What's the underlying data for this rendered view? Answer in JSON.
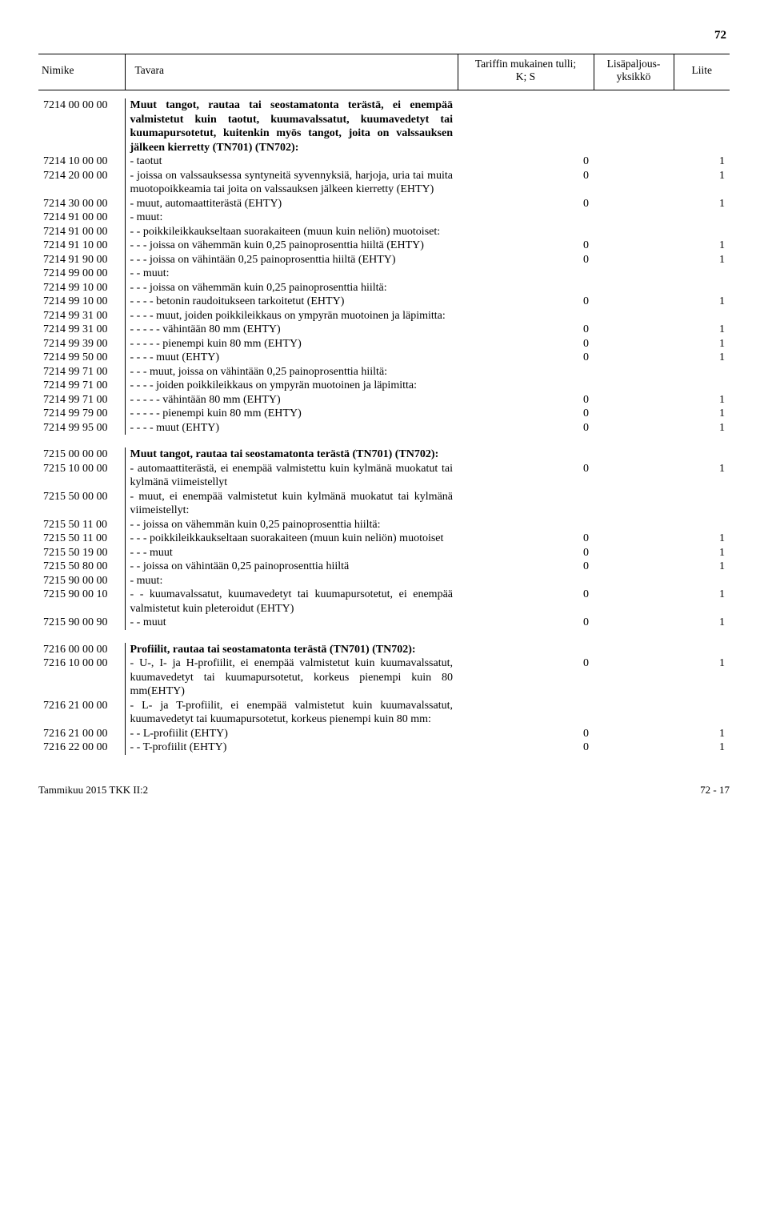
{
  "page_number_top": "72",
  "columns": {
    "code": "Nimike",
    "desc": "Tavara",
    "tariff_line1": "Tariffin mukainen tulli;",
    "tariff_line2": "K; S",
    "unit_line1": "Lisäpaljous-",
    "unit_line2": "yksikkö",
    "annex": "Liite"
  },
  "rows": [
    {
      "type": "row",
      "code": "7214 00 00 00",
      "bold": true,
      "desc": "Muut tangot, rautaa tai seostamatonta terästä, ei enempää valmistetut kuin taotut, kuumavalssatut, kuumavedetyt tai kuumapursotetut, kuitenkin myös tangot, joita on valssauksen jälkeen kierretty (TN701) (TN702):"
    },
    {
      "type": "row",
      "code": "7214 10 00 00",
      "desc": "- taotut",
      "tariff": "0",
      "annex": "1"
    },
    {
      "type": "row",
      "code": "7214 20 00 00",
      "desc": "- joissa on valssauksessa syntyneitä syvennyksiä, harjoja, uria tai muita muotopoikkeamia tai joita on valssauksen jälkeen kierretty (EHTY)",
      "tariff": "0",
      "annex": "1"
    },
    {
      "type": "row",
      "code": "7214 30 00 00",
      "desc": "- muut, automaattiterästä (EHTY)",
      "tariff": "0",
      "annex": "1"
    },
    {
      "type": "row",
      "code": "7214 91 00 00",
      "desc": "- muut:"
    },
    {
      "type": "row",
      "code": "7214 91 00 00",
      "desc": "- - poikkileikkaukseltaan suorakaiteen (muun kuin neliön) muotoiset:"
    },
    {
      "type": "row",
      "code": "7214 91 10 00",
      "desc": "- - - joissa on vähemmän kuin 0,25 painoprosenttia hiiltä (EHTY)",
      "tariff": "0",
      "annex": "1"
    },
    {
      "type": "row",
      "code": "7214 91 90 00",
      "desc": "- - - joissa on vähintään 0,25 painoprosenttia hiiltä (EHTY)",
      "tariff": "0",
      "annex": "1"
    },
    {
      "type": "row",
      "code": "7214 99 00 00",
      "desc": "- - muut:"
    },
    {
      "type": "row",
      "code": "7214 99 10 00",
      "desc": "- - - joissa on vähemmän kuin 0,25 painoprosenttia hiiltä:"
    },
    {
      "type": "row",
      "code": "7214 99 10 00",
      "desc": "- - - - betonin raudoitukseen tarkoitetut (EHTY)",
      "tariff": "0",
      "annex": "1"
    },
    {
      "type": "row",
      "code": "7214 99 31 00",
      "desc": "- - - - muut, joiden poikkileikkaus on ympyrän muotoinen ja läpimitta:"
    },
    {
      "type": "row",
      "code": "7214 99 31 00",
      "desc": "- - - - - vähintään 80 mm (EHTY)",
      "tariff": "0",
      "annex": "1"
    },
    {
      "type": "row",
      "code": "7214 99 39 00",
      "desc": "- - - - - pienempi kuin 80 mm (EHTY)",
      "tariff": "0",
      "annex": "1"
    },
    {
      "type": "row",
      "code": "7214 99 50 00",
      "desc": "- - - - muut (EHTY)",
      "tariff": "0",
      "annex": "1"
    },
    {
      "type": "row",
      "code": "7214 99 71 00",
      "desc": "- - - muut, joissa on vähintään 0,25 painoprosenttia hiiltä:"
    },
    {
      "type": "row",
      "code": "7214 99 71 00",
      "desc": "- - - - joiden poikkileikkaus on ympyrän muotoinen ja läpimitta:"
    },
    {
      "type": "row",
      "code": "7214 99 71 00",
      "desc": "- - - - - vähintään 80 mm (EHTY)",
      "tariff": "0",
      "annex": "1"
    },
    {
      "type": "row",
      "code": "7214 99 79 00",
      "desc": "- - - - - pienempi kuin 80 mm (EHTY)",
      "tariff": "0",
      "annex": "1"
    },
    {
      "type": "row",
      "code": "7214 99 95 00",
      "desc": "- - - - muut (EHTY)",
      "tariff": "0",
      "annex": "1"
    },
    {
      "type": "spacer-lg"
    },
    {
      "type": "row",
      "code": "7215 00 00 00",
      "bold": true,
      "desc": "Muut tangot, rautaa tai seostamatonta terästä (TN701) (TN702):"
    },
    {
      "type": "row",
      "code": "7215 10 00 00",
      "desc": "- automaattiterästä, ei enempää valmistettu kuin kylmänä muokatut tai kylmänä viimeistellyt",
      "tariff": "0",
      "annex": "1"
    },
    {
      "type": "row",
      "code": "7215 50 00 00",
      "desc": "- muut, ei enempää valmistetut kuin kylmänä muokatut tai kylmänä viimeistellyt:"
    },
    {
      "type": "row",
      "code": "7215 50 11 00",
      "desc": "- - joissa on vähemmän kuin 0,25 painoprosenttia hiiltä:"
    },
    {
      "type": "row",
      "code": "7215 50 11 00",
      "desc": "- - - poikkileikkaukseltaan suorakaiteen (muun kuin neliön) muotoiset",
      "tariff": "0",
      "annex": "1"
    },
    {
      "type": "row",
      "code": "7215 50 19 00",
      "desc": "- - - muut",
      "tariff": "0",
      "annex": "1"
    },
    {
      "type": "row",
      "code": "7215 50 80 00",
      "desc": "- - joissa on vähintään 0,25 painoprosenttia hiiltä",
      "tariff": "0",
      "annex": "1"
    },
    {
      "type": "row",
      "code": "7215 90 00 00",
      "desc": "- muut:"
    },
    {
      "type": "row",
      "code": "7215 90 00 10",
      "desc": "- - kuumavalssatut, kuumavedetyt tai kuumapursotetut, ei enempää valmistetut kuin pleteroidut (EHTY)",
      "tariff": "0",
      "annex": "1"
    },
    {
      "type": "row",
      "code": "7215 90 00 90",
      "desc": "- - muut",
      "tariff": "0",
      "annex": "1"
    },
    {
      "type": "spacer-lg"
    },
    {
      "type": "row",
      "code": "7216 00 00 00",
      "bold": true,
      "desc": "Profiilit, rautaa tai seostamatonta terästä (TN701) (TN702):"
    },
    {
      "type": "row",
      "code": "7216 10 00 00",
      "desc": "- U-, I- ja H-profiilit, ei enempää valmistetut kuin kuumavalssatut, kuumavedetyt tai kuumapursotetut, korkeus pienempi kuin 80 mm(EHTY)",
      "tariff": "0",
      "annex": "1"
    },
    {
      "type": "row",
      "code": "7216 21 00 00",
      "desc": "- L- ja T-profiilit, ei enempää valmistetut kuin kuumavalssatut, kuumavedetyt tai kuumapursotetut, korkeus pienempi kuin 80 mm:"
    },
    {
      "type": "row",
      "code": "7216 21 00 00",
      "desc": "- - L-profiilit (EHTY)",
      "tariff": "0",
      "annex": "1"
    },
    {
      "type": "row",
      "code": "7216 22 00 00",
      "desc": "- - T-profiilit (EHTY)",
      "tariff": "0",
      "annex": "1"
    }
  ],
  "footer_left": "Tammikuu 2015 TKK II:2",
  "footer_right": "72 - 17"
}
